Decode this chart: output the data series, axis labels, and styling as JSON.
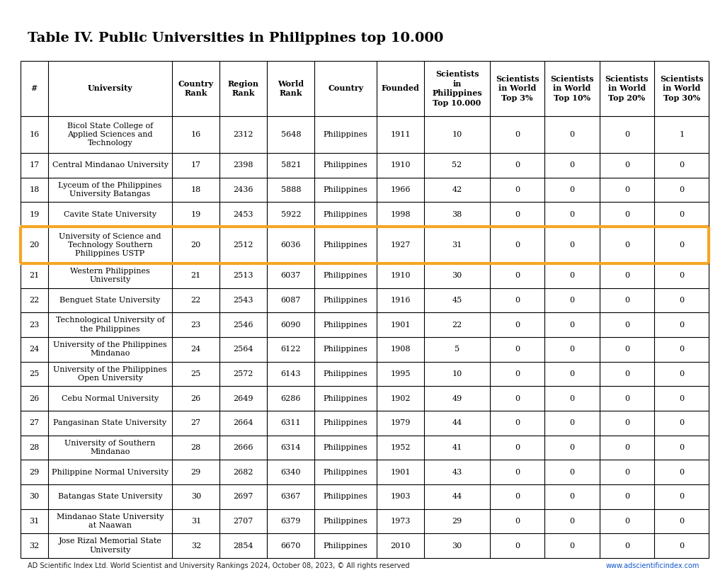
{
  "title": "Table IV. Public Universities in Philippines top 10.000",
  "footer_left": "AD Scientific Index Ltd. World Scientist and University Rankings 2024, October 08, 2023, © All rights reserved",
  "footer_right": "www.adscientificindex.com",
  "highlight_row": 4,
  "highlight_color": "#F5A623",
  "col_labels": [
    "#",
    "University",
    "Country\nRank",
    "Region\nRank",
    "World\nRank",
    "Country",
    "Founded",
    "Scientists\nin\nPhilippines\nTop 10.000",
    "Scientists\nin World\nTop 3%",
    "Scientists\nin World\nTop 10%",
    "Scientists\nin World\nTop 20%",
    "Scientists\nin World\nTop 30%"
  ],
  "col_widths": [
    0.38,
    1.7,
    0.65,
    0.65,
    0.65,
    0.85,
    0.65,
    0.9,
    0.75,
    0.75,
    0.75,
    0.75
  ],
  "rows": [
    [
      "16",
      "Bicol State College of\nApplied Sciences and\nTechnology",
      "16",
      "2312",
      "5648",
      "Philippines",
      "1911",
      "10",
      "0",
      "0",
      "0",
      "1"
    ],
    [
      "17",
      "Central Mindanao University",
      "17",
      "2398",
      "5821",
      "Philippines",
      "1910",
      "52",
      "0",
      "0",
      "0",
      "0"
    ],
    [
      "18",
      "Lyceum of the Philippines\nUniversity Batangas",
      "18",
      "2436",
      "5888",
      "Philippines",
      "1966",
      "42",
      "0",
      "0",
      "0",
      "0"
    ],
    [
      "19",
      "Cavite State University",
      "19",
      "2453",
      "5922",
      "Philippines",
      "1998",
      "38",
      "0",
      "0",
      "0",
      "0"
    ],
    [
      "20",
      "University of Science and\nTechnology Southern\nPhilippines USTP",
      "20",
      "2512",
      "6036",
      "Philippines",
      "1927",
      "31",
      "0",
      "0",
      "0",
      "0"
    ],
    [
      "21",
      "Western Philippines\nUniversity",
      "21",
      "2513",
      "6037",
      "Philippines",
      "1910",
      "30",
      "0",
      "0",
      "0",
      "0"
    ],
    [
      "22",
      "Benguet State University",
      "22",
      "2543",
      "6087",
      "Philippines",
      "1916",
      "45",
      "0",
      "0",
      "0",
      "0"
    ],
    [
      "23",
      "Technological University of\nthe Philippines",
      "23",
      "2546",
      "6090",
      "Philippines",
      "1901",
      "22",
      "0",
      "0",
      "0",
      "0"
    ],
    [
      "24",
      "University of the Philippines\nMindanao",
      "24",
      "2564",
      "6122",
      "Philippines",
      "1908",
      "5",
      "0",
      "0",
      "0",
      "0"
    ],
    [
      "25",
      "University of the Philippines\nOpen University",
      "25",
      "2572",
      "6143",
      "Philippines",
      "1995",
      "10",
      "0",
      "0",
      "0",
      "0"
    ],
    [
      "26",
      "Cebu Normal University",
      "26",
      "2649",
      "6286",
      "Philippines",
      "1902",
      "49",
      "0",
      "0",
      "0",
      "0"
    ],
    [
      "27",
      "Pangasinan State University",
      "27",
      "2664",
      "6311",
      "Philippines",
      "1979",
      "44",
      "0",
      "0",
      "0",
      "0"
    ],
    [
      "28",
      "University of Southern\nMindanao",
      "28",
      "2666",
      "6314",
      "Philippines",
      "1952",
      "41",
      "0",
      "0",
      "0",
      "0"
    ],
    [
      "29",
      "Philippine Normal University",
      "29",
      "2682",
      "6340",
      "Philippines",
      "1901",
      "43",
      "0",
      "0",
      "0",
      "0"
    ],
    [
      "30",
      "Batangas State University",
      "30",
      "2697",
      "6367",
      "Philippines",
      "1903",
      "44",
      "0",
      "0",
      "0",
      "0"
    ],
    [
      "31",
      "Mindanao State University\nat Naawan",
      "31",
      "2707",
      "6379",
      "Philippines",
      "1973",
      "29",
      "0",
      "0",
      "0",
      "0"
    ],
    [
      "32",
      "Jose Rizal Memorial State\nUniversity",
      "32",
      "2854",
      "6670",
      "Philippines",
      "2010",
      "30",
      "0",
      "0",
      "0",
      "0"
    ]
  ],
  "bg_color": "#ffffff",
  "cell_text_color": "#000000",
  "title_fontsize": 14,
  "cell_fontsize": 8,
  "header_fontsize": 8
}
